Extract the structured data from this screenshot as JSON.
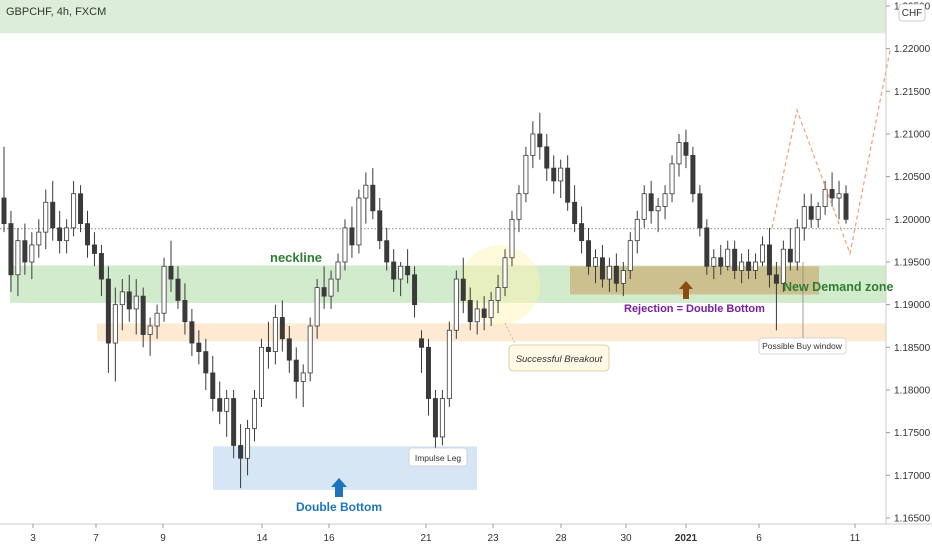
{
  "header": {
    "symbol": "GBPCHF, 4h, FXCM"
  },
  "currency_badge": "CHF",
  "colors": {
    "candle": "#3a3a3a",
    "zone_green": "#c8e6c0",
    "zone_orange": "#fde3c4",
    "zone_blue": "#cfe2f3",
    "zone_demand": "#c9b27a",
    "zone_top": "#d9ecd4",
    "accent_green": "#2e7d32",
    "accent_purple": "#7b1fa2",
    "accent_blue": "#1e73be",
    "accent_brown": "#8d4a12",
    "path_orange": "#f0a070"
  },
  "annotations": {
    "neckline": "neckline",
    "new_demand_zone": "New Demand zone",
    "rejection": "Rejection = Double Bottom",
    "successful_breakout": "Successful Breakout",
    "possible_buy_window": "Possible Buy window",
    "impulse_leg": "Impulse Leg",
    "double_bottom": "Double Bottom"
  },
  "chart_data": {
    "type": "candlestick",
    "title": "GBPCHF, 4h, FXCM",
    "y_axis": {
      "labels": [
        "1.22500",
        "1.22000",
        "1.21500",
        "1.21000",
        "1.20500",
        "1.20000",
        "1.19500",
        "1.19000",
        "1.18500",
        "1.18000",
        "1.17500",
        "1.17000",
        "1.16500"
      ],
      "min": 1.164,
      "max": 1.227
    },
    "x_axis": {
      "labels": [
        "3",
        "7",
        "9",
        "14",
        "16",
        "21",
        "23",
        "28",
        "30",
        "2021",
        "6",
        "11"
      ]
    },
    "current_price": 1.1989,
    "zones": [
      {
        "name": "top-band",
        "from": 1.2218,
        "to": 1.227
      },
      {
        "name": "neckline-zone",
        "from": 1.1902,
        "to": 1.1946
      },
      {
        "name": "support-zone",
        "from": 1.1857,
        "to": 1.1878
      },
      {
        "name": "double-bottom-zone",
        "from": 1.1683,
        "to": 1.1734
      },
      {
        "name": "new-demand-zone",
        "from": 1.1912,
        "to": 1.1945
      }
    ],
    "projection": [
      {
        "x": 772,
        "price": 1.199
      },
      {
        "x": 797,
        "price": 1.2128
      },
      {
        "x": 850,
        "price": 1.196
      },
      {
        "x": 890,
        "price": 1.2198
      }
    ],
    "candles": [
      [
        1.2025,
        1.2085,
        1.1985,
        1.1995
      ],
      [
        1.1995,
        1.201,
        1.1915,
        1.1935
      ],
      [
        1.1935,
        1.199,
        1.191,
        1.1975
      ],
      [
        1.1975,
        1.1995,
        1.1935,
        1.195
      ],
      [
        1.195,
        1.1985,
        1.193,
        1.197
      ],
      [
        1.197,
        1.2,
        1.1955,
        1.1985
      ],
      [
        1.1985,
        1.2035,
        1.1965,
        1.202
      ],
      [
        1.202,
        1.2045,
        1.1975,
        1.199
      ],
      [
        1.199,
        1.201,
        1.196,
        1.1975
      ],
      [
        1.1975,
        1.2,
        1.196,
        1.199
      ],
      [
        1.199,
        1.2045,
        1.198,
        1.203
      ],
      [
        1.203,
        1.204,
        1.1985,
        1.1995
      ],
      [
        1.1995,
        1.201,
        1.1955,
        1.197
      ],
      [
        1.197,
        1.1985,
        1.1945,
        1.196
      ],
      [
        1.196,
        1.197,
        1.191,
        1.193
      ],
      [
        1.193,
        1.1945,
        1.182,
        1.1855
      ],
      [
        1.1855,
        1.192,
        1.181,
        1.19
      ],
      [
        1.19,
        1.193,
        1.187,
        1.1915
      ],
      [
        1.1915,
        1.1935,
        1.188,
        1.1895
      ],
      [
        1.1895,
        1.193,
        1.1865,
        1.191
      ],
      [
        1.191,
        1.192,
        1.185,
        1.1865
      ],
      [
        1.1865,
        1.1885,
        1.184,
        1.1875
      ],
      [
        1.1875,
        1.19,
        1.186,
        1.189
      ],
      [
        1.189,
        1.1955,
        1.188,
        1.1945
      ],
      [
        1.1945,
        1.1975,
        1.1915,
        1.193
      ],
      [
        1.193,
        1.1945,
        1.1895,
        1.1905
      ],
      [
        1.1905,
        1.1925,
        1.1865,
        1.188
      ],
      [
        1.188,
        1.1895,
        1.184,
        1.1855
      ],
      [
        1.1855,
        1.187,
        1.183,
        1.1845
      ],
      [
        1.1845,
        1.186,
        1.18,
        1.182
      ],
      [
        1.182,
        1.184,
        1.1775,
        1.179
      ],
      [
        1.179,
        1.181,
        1.176,
        1.1775
      ],
      [
        1.1775,
        1.18,
        1.1745,
        1.179
      ],
      [
        1.179,
        1.18,
        1.172,
        1.1735
      ],
      [
        1.1735,
        1.176,
        1.1685,
        1.172
      ],
      [
        1.172,
        1.1765,
        1.17,
        1.1755
      ],
      [
        1.1755,
        1.18,
        1.174,
        1.179
      ],
      [
        1.179,
        1.186,
        1.178,
        1.185
      ],
      [
        1.185,
        1.188,
        1.1825,
        1.1845
      ],
      [
        1.1845,
        1.19,
        1.183,
        1.1885
      ],
      [
        1.1885,
        1.1905,
        1.1845,
        1.186
      ],
      [
        1.186,
        1.1875,
        1.182,
        1.1835
      ],
      [
        1.1835,
        1.185,
        1.179,
        1.181
      ],
      [
        1.181,
        1.183,
        1.178,
        1.182
      ],
      [
        1.182,
        1.1885,
        1.181,
        1.1875
      ],
      [
        1.1875,
        1.193,
        1.186,
        1.192
      ],
      [
        1.192,
        1.1945,
        1.1895,
        1.191
      ],
      [
        1.191,
        1.194,
        1.1895,
        1.193
      ],
      [
        1.193,
        1.196,
        1.1915,
        1.195
      ],
      [
        1.195,
        1.2,
        1.194,
        1.199
      ],
      [
        1.199,
        1.2015,
        1.1955,
        1.197
      ],
      [
        1.197,
        1.2035,
        1.196,
        1.2025
      ],
      [
        1.2025,
        1.2055,
        1.1995,
        1.204
      ],
      [
        1.204,
        1.206,
        1.2,
        1.201
      ],
      [
        1.201,
        1.2025,
        1.1965,
        1.1975
      ],
      [
        1.1975,
        1.199,
        1.194,
        1.195
      ],
      [
        1.195,
        1.1965,
        1.1915,
        1.193
      ],
      [
        1.193,
        1.195,
        1.191,
        1.1945
      ],
      [
        1.1945,
        1.1965,
        1.1925,
        1.1935
      ],
      [
        1.1935,
        1.1945,
        1.1885,
        1.19
      ],
      [
        1.186,
        1.187,
        1.182,
        1.185
      ],
      [
        1.185,
        1.186,
        1.177,
        1.179
      ],
      [
        1.179,
        1.18,
        1.173,
        1.1745
      ],
      [
        1.1745,
        1.18,
        1.1735,
        1.179
      ],
      [
        1.179,
        1.188,
        1.178,
        1.187
      ],
      [
        1.187,
        1.194,
        1.186,
        1.193
      ],
      [
        1.193,
        1.1955,
        1.189,
        1.1905
      ],
      [
        1.1905,
        1.192,
        1.187,
        1.188
      ],
      [
        1.188,
        1.1905,
        1.1865,
        1.1895
      ],
      [
        1.1895,
        1.191,
        1.187,
        1.1885
      ],
      [
        1.1885,
        1.1915,
        1.1875,
        1.1905
      ],
      [
        1.1905,
        1.1935,
        1.189,
        1.192
      ],
      [
        1.192,
        1.1965,
        1.191,
        1.1955
      ],
      [
        1.1955,
        1.201,
        1.1945,
        1.2
      ],
      [
        1.2,
        1.204,
        1.1985,
        1.203
      ],
      [
        1.203,
        1.2085,
        1.202,
        1.2075
      ],
      [
        1.2075,
        1.2115,
        1.206,
        1.21
      ],
      [
        1.21,
        1.2125,
        1.207,
        1.2085
      ],
      [
        1.2085,
        1.21,
        1.2045,
        1.206
      ],
      [
        1.206,
        1.2075,
        1.203,
        1.2045
      ],
      [
        1.2045,
        1.207,
        1.2025,
        1.206
      ],
      [
        1.206,
        1.2075,
        1.201,
        1.202
      ],
      [
        1.202,
        1.204,
        1.1985,
        1.1995
      ],
      [
        1.1995,
        1.2015,
        1.196,
        1.1975
      ],
      [
        1.1975,
        1.199,
        1.1935,
        1.1945
      ],
      [
        1.1945,
        1.1965,
        1.1925,
        1.1955
      ],
      [
        1.1955,
        1.197,
        1.192,
        1.193
      ],
      [
        1.193,
        1.1955,
        1.1915,
        1.1945
      ],
      [
        1.1945,
        1.196,
        1.1915,
        1.1925
      ],
      [
        1.1925,
        1.195,
        1.191,
        1.194
      ],
      [
        1.194,
        1.1985,
        1.193,
        1.1975
      ],
      [
        1.1975,
        1.201,
        1.196,
        1.2
      ],
      [
        1.2,
        1.204,
        1.199,
        1.203
      ],
      [
        1.203,
        1.2045,
        1.1995,
        1.201
      ],
      [
        1.201,
        1.2025,
        1.1985,
        1.2015
      ],
      [
        1.2015,
        1.204,
        1.2,
        1.203
      ],
      [
        1.203,
        1.2075,
        1.202,
        1.2065
      ],
      [
        1.2065,
        1.21,
        1.205,
        1.209
      ],
      [
        1.209,
        1.2105,
        1.206,
        1.2075
      ],
      [
        1.2075,
        1.2085,
        1.202,
        1.203
      ],
      [
        1.203,
        1.204,
        1.198,
        1.199
      ],
      [
        1.199,
        1.2,
        1.1935,
        1.1945
      ],
      [
        1.1945,
        1.1965,
        1.193,
        1.1955
      ],
      [
        1.1955,
        1.197,
        1.1935,
        1.1945
      ],
      [
        1.1945,
        1.1975,
        1.194,
        1.1965
      ],
      [
        1.1965,
        1.1975,
        1.193,
        1.194
      ],
      [
        1.194,
        1.196,
        1.1925,
        1.195
      ],
      [
        1.195,
        1.1965,
        1.193,
        1.194
      ],
      [
        1.194,
        1.196,
        1.193,
        1.195
      ],
      [
        1.195,
        1.198,
        1.1945,
        1.197
      ],
      [
        1.197,
        1.199,
        1.192,
        1.1935
      ],
      [
        1.1935,
        1.195,
        1.187,
        1.1925
      ],
      [
        1.1925,
        1.1975,
        1.1915,
        1.1965
      ],
      [
        1.1965,
        1.199,
        1.194,
        1.195
      ],
      [
        1.195,
        1.2,
        1.194,
        1.199
      ],
      [
        1.199,
        1.203,
        1.1975,
        1.2015
      ],
      [
        1.2015,
        1.203,
        1.199,
        1.2
      ],
      [
        1.2,
        1.202,
        1.199,
        1.2015
      ],
      [
        1.2015,
        1.2045,
        1.2005,
        1.2035
      ],
      [
        1.2035,
        1.2055,
        1.2015,
        1.2025
      ],
      [
        1.2025,
        1.2045,
        1.2,
        1.203
      ],
      [
        1.203,
        1.204,
        1.1995,
        1.2
      ]
    ]
  }
}
